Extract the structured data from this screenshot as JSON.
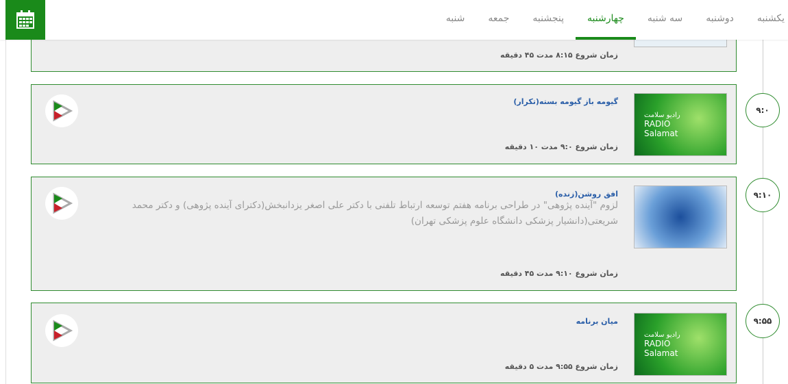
{
  "tabs": [
    "یکشنبه",
    "دوشنبه",
    "سه شنبه",
    "چهارشنبه",
    "پنجشنبه",
    "جمعه",
    "شنبه"
  ],
  "active_tab": "چهارشنبه",
  "programs": [
    {
      "title": "",
      "desc": "",
      "meta": "زمان شروع ۸:۱۵ مدت ۴۵ دقیقه",
      "time": ""
    },
    {
      "title": "گیومه باز گیومه بسته(تکرار)",
      "desc": "",
      "meta": "زمان شروع ۹:۰ مدت ۱۰ دقیقه",
      "time": "۹:۰",
      "thumb_text": [
        "رادیو سلامت",
        "RADIO",
        "Salamat"
      ]
    },
    {
      "title": "افق روشن(زنده)",
      "desc": "لزوم \"آینده پژوهی\" در طراحی برنامه هفتم توسعه ارتباط تلفنی با دکتر علی اصغر یزدانبخش(دکترای آینده پژوهی) و دکتر محمد شریعتی(دانشیار پزشکی دانشگاه علوم پزشکی تهران)",
      "meta": "زمان شروع ۹:۱۰ مدت ۴۵ دقیقه",
      "time": "۹:۱۰"
    },
    {
      "title": "میان برنامه",
      "desc": "",
      "meta": "زمان شروع ۹:۵۵ مدت ۵ دقیقه",
      "time": "۹:۵۵",
      "thumb_text": [
        "رادیو سلامت",
        "RADIO",
        "Salamat"
      ]
    }
  ],
  "colors": {
    "accent": "#1a8a1a",
    "title": "#2a5ea8"
  }
}
